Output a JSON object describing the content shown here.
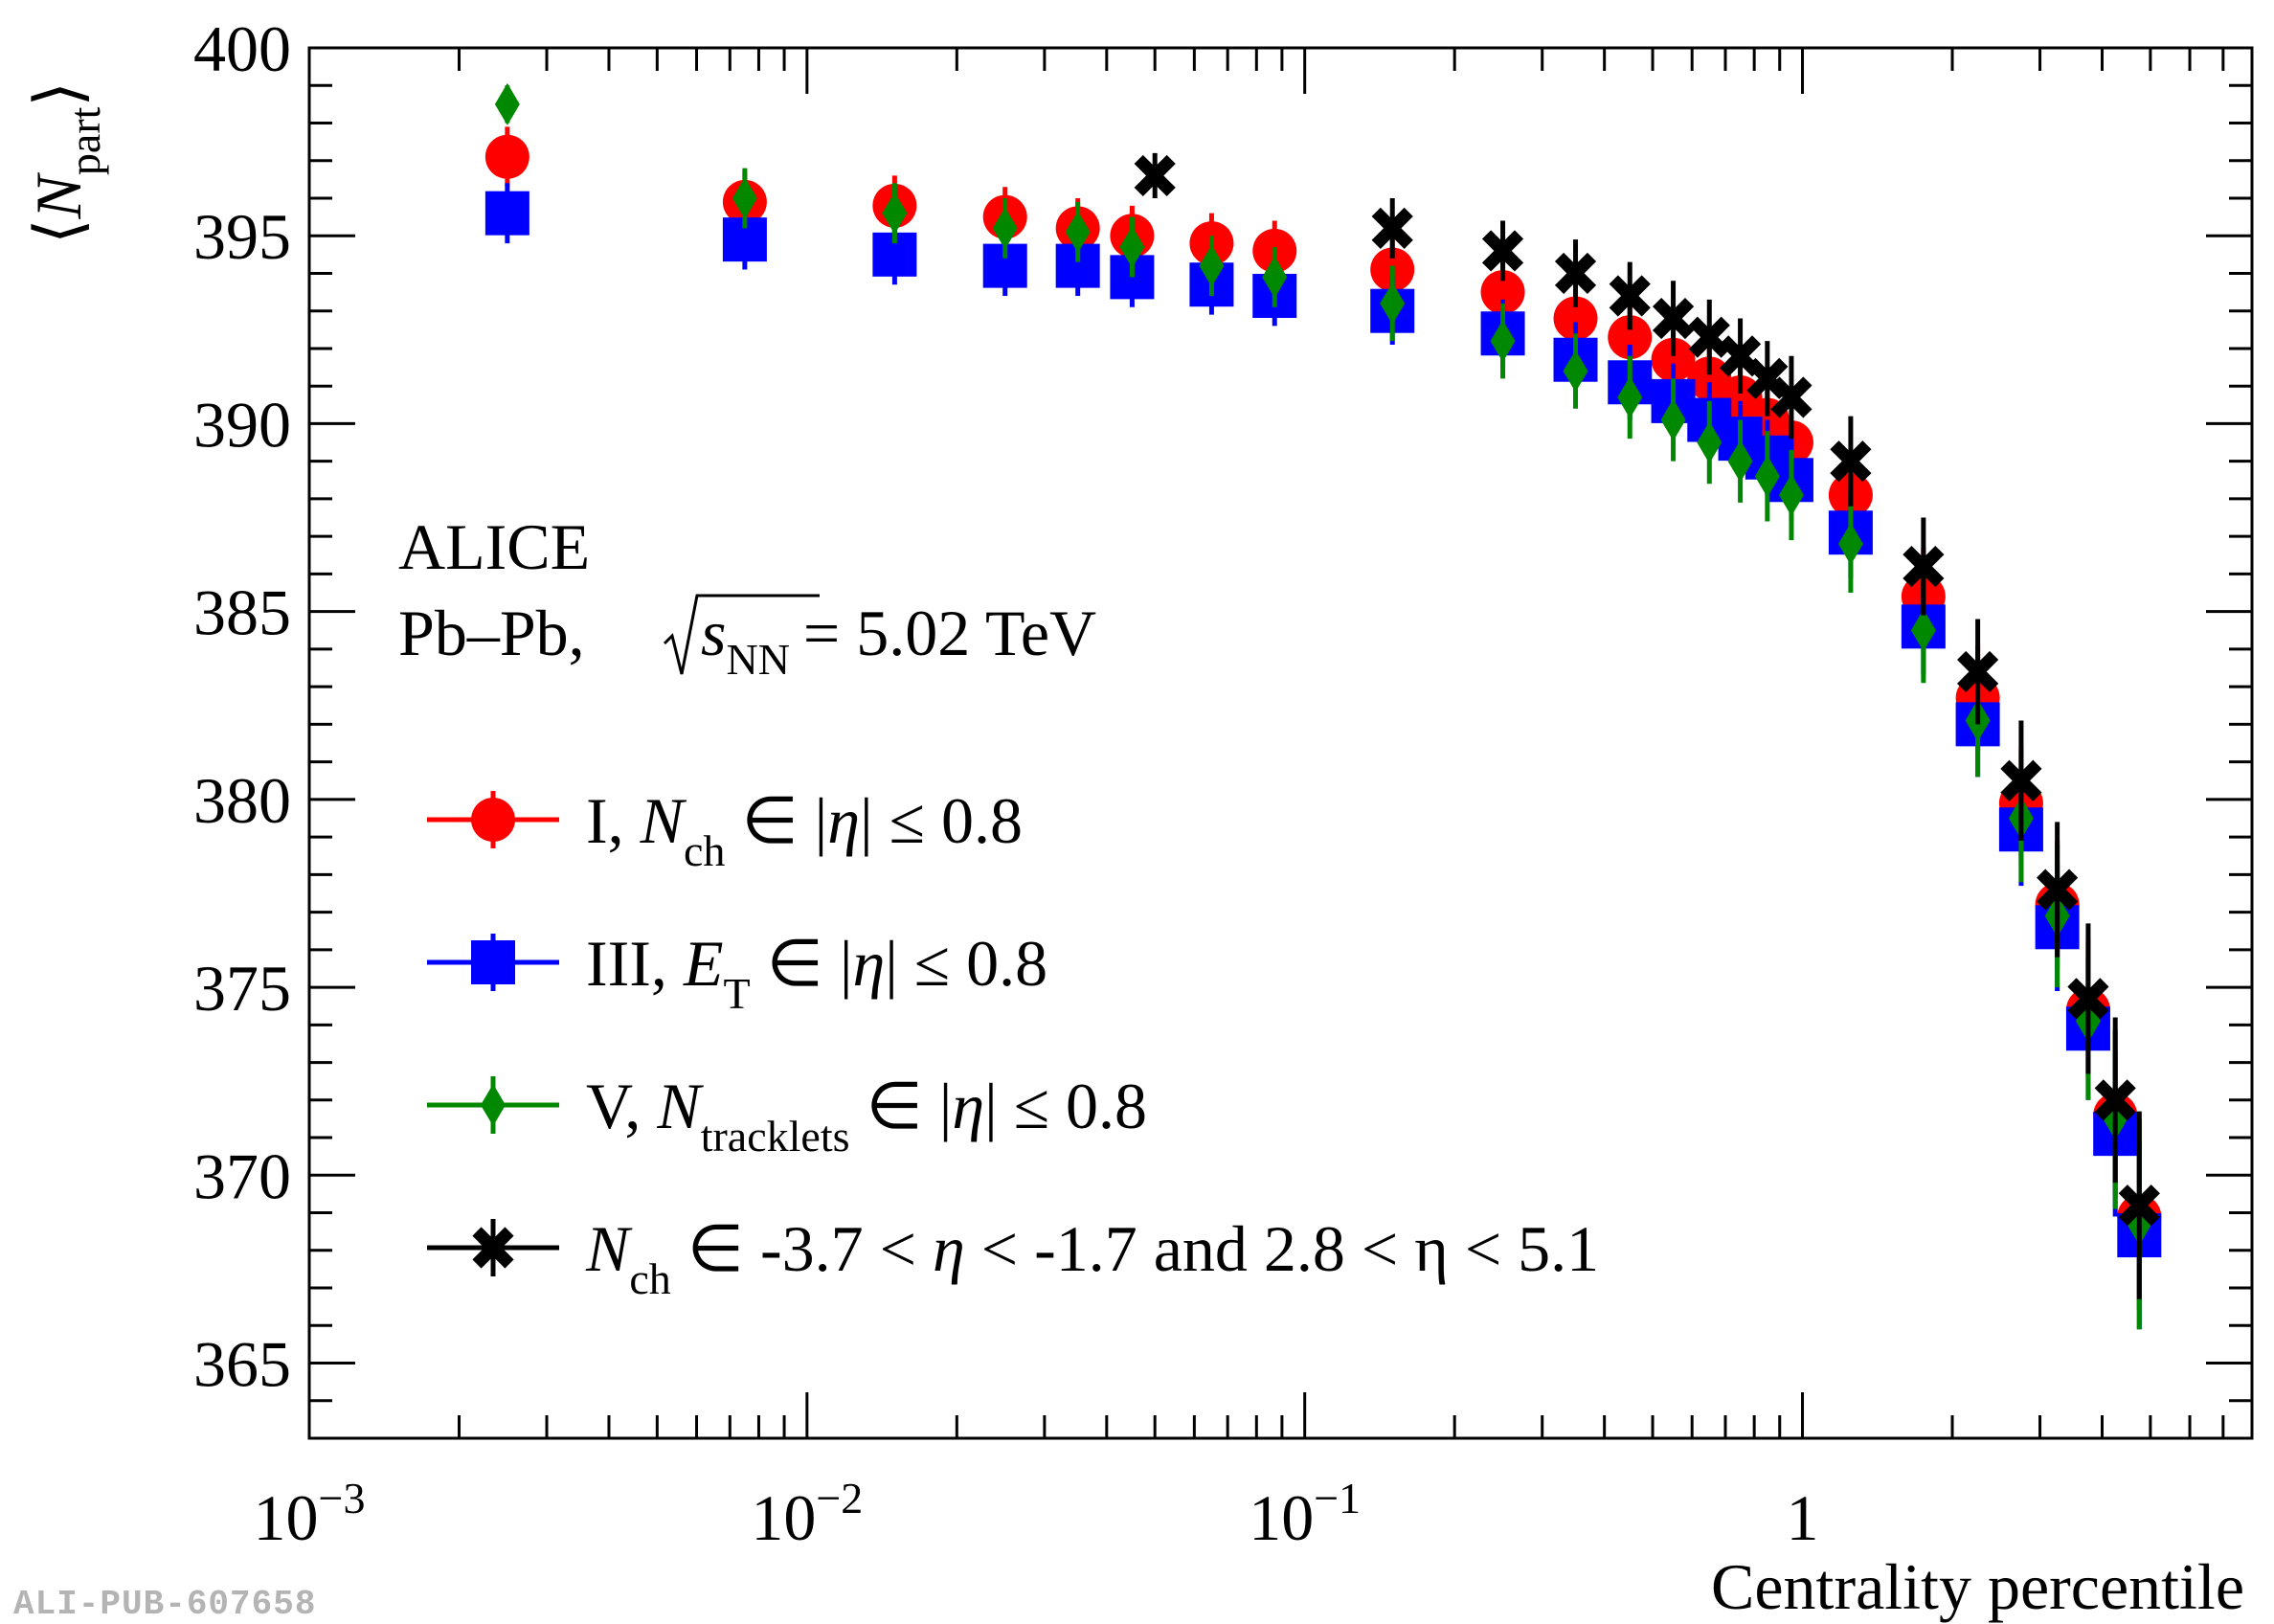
{
  "chart_data": {
    "type": "scatter",
    "x_scale": "log",
    "xlim": [
      0.001,
      8.0
    ],
    "ylim": [
      363,
      400
    ],
    "xlabel": "Centrality percentile",
    "ylabel": "⟨N_part⟩",
    "ylabel_main": "N",
    "ylabel_sub": "part",
    "x_ticks": [
      {
        "value": 0.001,
        "base": "10",
        "exp": "−3"
      },
      {
        "value": 0.01,
        "base": "10",
        "exp": "−2"
      },
      {
        "value": 0.1,
        "base": "10",
        "exp": "−1"
      },
      {
        "value": 1,
        "base": "1",
        "exp": ""
      }
    ],
    "y_ticks": [
      365,
      370,
      375,
      380,
      385,
      390,
      395,
      400
    ],
    "grid": false,
    "legend_position": "left-middle",
    "series": [
      {
        "name": "I, N_ch ∈ |η| ≤ 0.8",
        "marker": "circle",
        "color": "#ff0000",
        "points": [
          [
            0.0025,
            397.1,
            0.8
          ],
          [
            0.0075,
            395.9,
            0.8
          ],
          [
            0.015,
            395.8,
            0.8
          ],
          [
            0.025,
            395.5,
            0.8
          ],
          [
            0.035,
            395.2,
            0.8
          ],
          [
            0.045,
            395.0,
            0.8
          ],
          [
            0.065,
            394.8,
            0.8
          ],
          [
            0.087,
            394.6,
            0.8
          ],
          [
            0.15,
            394.1,
            0.9
          ],
          [
            0.25,
            393.5,
            0.9
          ],
          [
            0.35,
            392.8,
            1.0
          ],
          [
            0.45,
            392.3,
            1.0
          ],
          [
            0.55,
            391.7,
            1.0
          ],
          [
            0.65,
            391.2,
            1.0
          ],
          [
            0.75,
            390.7,
            1.0
          ],
          [
            0.85,
            390.1,
            1.0
          ],
          [
            0.95,
            389.5,
            1.1
          ],
          [
            1.25,
            388.1,
            1.2
          ],
          [
            1.75,
            385.4,
            1.3
          ],
          [
            2.25,
            382.7,
            1.4
          ],
          [
            2.75,
            379.9,
            1.5
          ],
          [
            3.25,
            377.2,
            1.7
          ],
          [
            3.75,
            374.4,
            1.9
          ],
          [
            4.25,
            371.6,
            2.2
          ],
          [
            4.75,
            368.9,
            2.5
          ]
        ]
      },
      {
        "name": "III, E_T ∈ |η| ≤ 0.8",
        "marker": "square",
        "color": "#0000ff",
        "points": [
          [
            0.0025,
            395.6,
            0.8
          ],
          [
            0.0075,
            394.9,
            0.8
          ],
          [
            0.015,
            394.5,
            0.8
          ],
          [
            0.025,
            394.2,
            0.8
          ],
          [
            0.035,
            394.2,
            0.8
          ],
          [
            0.045,
            393.9,
            0.8
          ],
          [
            0.065,
            393.7,
            0.8
          ],
          [
            0.087,
            393.4,
            0.8
          ],
          [
            0.15,
            393.0,
            0.9
          ],
          [
            0.25,
            392.4,
            0.9
          ],
          [
            0.35,
            391.7,
            1.0
          ],
          [
            0.45,
            391.1,
            1.0
          ],
          [
            0.55,
            390.6,
            1.0
          ],
          [
            0.65,
            390.1,
            1.0
          ],
          [
            0.75,
            389.6,
            1.0
          ],
          [
            0.85,
            389.1,
            1.0
          ],
          [
            0.95,
            388.5,
            1.1
          ],
          [
            1.25,
            387.1,
            1.2
          ],
          [
            1.75,
            384.6,
            1.3
          ],
          [
            2.25,
            382.0,
            1.4
          ],
          [
            2.75,
            379.2,
            1.5
          ],
          [
            3.25,
            376.6,
            1.7
          ],
          [
            3.75,
            373.9,
            1.9
          ],
          [
            4.25,
            371.1,
            2.2
          ],
          [
            4.75,
            368.4,
            2.5
          ]
        ]
      },
      {
        "name": "V, N_tracklets ∈ |η| ≤ 0.8",
        "marker": "diamond",
        "color": "#008800",
        "points": [
          [
            0.0025,
            398.5,
            0.5
          ],
          [
            0.0075,
            396.0,
            0.8
          ],
          [
            0.015,
            395.6,
            0.8
          ],
          [
            0.025,
            395.2,
            0.8
          ],
          [
            0.035,
            395.1,
            0.8
          ],
          [
            0.045,
            394.7,
            0.8
          ],
          [
            0.065,
            394.2,
            0.8
          ],
          [
            0.087,
            393.9,
            0.8
          ],
          [
            0.15,
            393.2,
            1.0
          ],
          [
            0.25,
            392.2,
            1.0
          ],
          [
            0.35,
            391.4,
            1.0
          ],
          [
            0.45,
            390.7,
            1.1
          ],
          [
            0.55,
            390.1,
            1.1
          ],
          [
            0.65,
            389.5,
            1.1
          ],
          [
            0.75,
            389.0,
            1.1
          ],
          [
            0.85,
            388.6,
            1.2
          ],
          [
            0.95,
            388.1,
            1.2
          ],
          [
            1.25,
            386.8,
            1.3
          ],
          [
            1.75,
            384.5,
            1.4
          ],
          [
            2.25,
            382.1,
            1.5
          ],
          [
            2.75,
            379.5,
            1.7
          ],
          [
            3.25,
            376.9,
            1.9
          ],
          [
            3.75,
            374.1,
            2.1
          ],
          [
            4.25,
            371.5,
            2.4
          ],
          [
            4.75,
            368.7,
            2.8
          ]
        ]
      },
      {
        "name": "N_ch ∈ -3.7 < η < -1.7 and 2.8 < η < 5.1",
        "marker": "cross",
        "color": "#000000",
        "points": [
          [
            0.05,
            396.6,
            0.6
          ],
          [
            0.15,
            395.2,
            0.8
          ],
          [
            0.25,
            394.6,
            0.8
          ],
          [
            0.35,
            394.0,
            0.9
          ],
          [
            0.45,
            393.4,
            0.9
          ],
          [
            0.55,
            392.8,
            1.0
          ],
          [
            0.65,
            392.3,
            1.0
          ],
          [
            0.75,
            391.8,
            1.0
          ],
          [
            0.85,
            391.2,
            1.0
          ],
          [
            0.95,
            390.7,
            1.1
          ],
          [
            1.25,
            389.0,
            1.2
          ],
          [
            1.75,
            386.2,
            1.3
          ],
          [
            2.25,
            383.4,
            1.4
          ],
          [
            2.75,
            380.5,
            1.6
          ],
          [
            3.25,
            377.6,
            1.8
          ],
          [
            3.75,
            374.7,
            2.0
          ],
          [
            4.25,
            372.0,
            2.2
          ],
          [
            4.75,
            369.2,
            2.5
          ]
        ]
      }
    ]
  },
  "legend": [
    {
      "prefix": "I, ",
      "var": "N",
      "sub": "ch",
      "rest": " ∈ |",
      "eta": "η",
      "tail": "| ≤ 0.8"
    },
    {
      "prefix": "III, ",
      "var": "E",
      "sub": "T",
      "rest": " ∈ |",
      "eta": "η",
      "tail": "| ≤ 0.8"
    },
    {
      "prefix": "V, ",
      "var": "N",
      "sub": "tracklets",
      "rest": " ∈ |",
      "eta": "η",
      "tail": "| ≤ 0.8"
    },
    {
      "prefix": "",
      "var": "N",
      "sub": "ch",
      "rest": " ∈ -3.7 < ",
      "eta": "η",
      "tail": " < -1.7 and 2.8 < η < 5.1"
    }
  ],
  "annotation": {
    "experiment": "ALICE",
    "system": "Pb–Pb,",
    "sqrt_var": "s",
    "sqrt_sub": "NN",
    "energy": "= 5.02 TeV"
  },
  "pub_id": "ALI-PUB-607658"
}
